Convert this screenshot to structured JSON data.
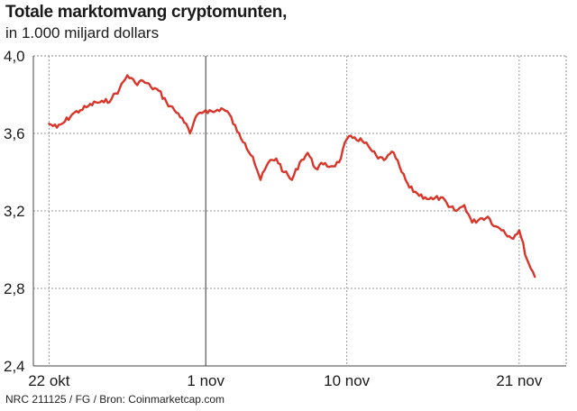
{
  "title": "Totale marktomvang cryptomunten,",
  "subtitle": "in 1.000 miljard dollars",
  "source": "NRC 211125 / FG / Bron: Coinmarketcap.com",
  "chart_data": {
    "type": "line",
    "title": "Totale marktomvang cryptomunten,",
    "subtitle": "in 1.000 miljard dollars",
    "xlabel": "",
    "ylabel": "",
    "ylim": [
      2.4,
      4.0
    ],
    "yticks": [
      4.0,
      3.6,
      3.2,
      2.8,
      2.4
    ],
    "ytick_labels": [
      "4,0",
      "3,6",
      "3,2",
      "2,8",
      "2,4"
    ],
    "xlim": [
      "2021-10-21",
      "2021-11-24"
    ],
    "xticks": [
      "2021-10-22",
      "2021-11-01",
      "2021-11-10",
      "2021-11-21"
    ],
    "xtick_labels": [
      "22 okt",
      "1 nov",
      "10 nov",
      "21 nov"
    ],
    "grid": "dotted",
    "line_color": "#d9362b",
    "series": [
      {
        "x": [
          "2021-10-22",
          "2021-10-22",
          "2021-10-23",
          "2021-10-23",
          "2021-10-24",
          "2021-10-24",
          "2021-10-25",
          "2021-10-25",
          "2021-10-26",
          "2021-10-26",
          "2021-10-27",
          "2021-10-27",
          "2021-10-28",
          "2021-10-28",
          "2021-10-29",
          "2021-10-29",
          "2021-10-30",
          "2021-10-30",
          "2021-10-31",
          "2021-10-31",
          "2021-11-01",
          "2021-11-01",
          "2021-11-02",
          "2021-11-02",
          "2021-11-03",
          "2021-11-03",
          "2021-11-04",
          "2021-11-04",
          "2021-11-05",
          "2021-11-05",
          "2021-11-06",
          "2021-11-06",
          "2021-11-07",
          "2021-11-07",
          "2021-11-08",
          "2021-11-08",
          "2021-11-09",
          "2021-11-09",
          "2021-11-10",
          "2021-11-10",
          "2021-11-11",
          "2021-11-11",
          "2021-11-12",
          "2021-11-12",
          "2021-11-13",
          "2021-11-13",
          "2021-11-14",
          "2021-11-14",
          "2021-11-15",
          "2021-11-15",
          "2021-11-16",
          "2021-11-16",
          "2021-11-17",
          "2021-11-17",
          "2021-11-18",
          "2021-11-18",
          "2021-11-19",
          "2021-11-19",
          "2021-11-20",
          "2021-11-20",
          "2021-11-21",
          "2021-11-21",
          "2021-11-22"
        ],
        "y": [
          3.65,
          3.63,
          3.66,
          3.7,
          3.72,
          3.74,
          3.76,
          3.76,
          3.78,
          3.83,
          3.9,
          3.86,
          3.87,
          3.84,
          3.82,
          3.76,
          3.72,
          3.68,
          3.6,
          3.7,
          3.72,
          3.71,
          3.73,
          3.7,
          3.61,
          3.55,
          3.48,
          3.36,
          3.45,
          3.47,
          3.4,
          3.36,
          3.45,
          3.5,
          3.42,
          3.44,
          3.43,
          3.45,
          3.57,
          3.58,
          3.56,
          3.52,
          3.47,
          3.47,
          3.5,
          3.4,
          3.32,
          3.29,
          3.27,
          3.26,
          3.27,
          3.22,
          3.2,
          3.23,
          3.14,
          3.16,
          3.17,
          3.12,
          3.1,
          3.06,
          3.1,
          2.95,
          2.86
        ]
      }
    ]
  }
}
